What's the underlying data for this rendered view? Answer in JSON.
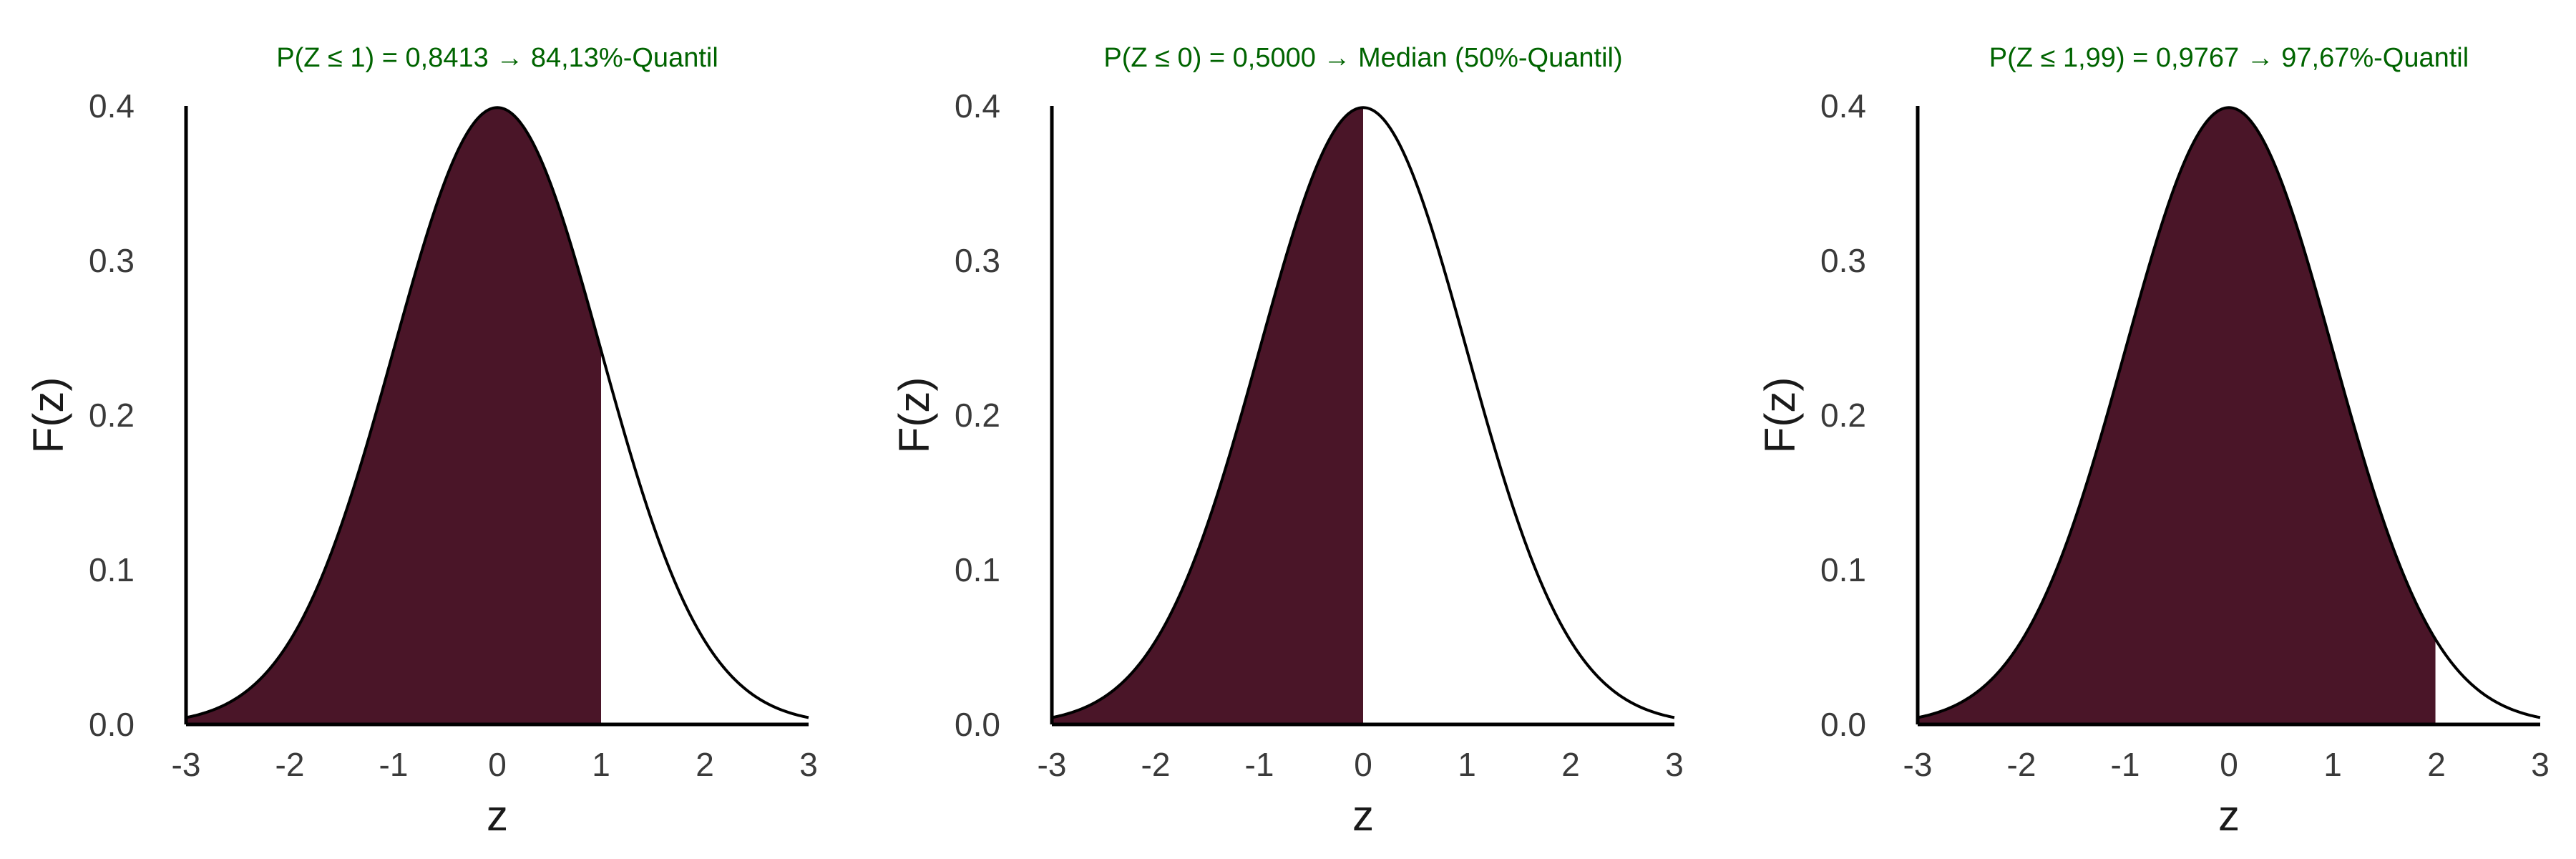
{
  "colors": {
    "fill": "#4a1528",
    "curve": "#000000",
    "axis": "#000000",
    "title": "#006400",
    "tick_text": "#3a3a3a",
    "background": "#ffffff"
  },
  "chart_data": [
    {
      "type": "area",
      "title": "P(Z ≤ 1) = 0,8413 → 84,13%-Quantil",
      "xlabel": "z",
      "ylabel": "F(z)",
      "xlim": [
        -3,
        3
      ],
      "ylim": [
        0,
        0.4
      ],
      "xticks": [
        -3,
        -2,
        -1,
        0,
        1,
        2,
        3
      ],
      "xtick_labels": [
        "-3",
        "-2",
        "-1",
        "0",
        "1",
        "2",
        "3"
      ],
      "yticks": [
        0.0,
        0.1,
        0.2,
        0.3,
        0.4
      ],
      "ytick_labels": [
        "0.0",
        "0.1",
        "0.2",
        "0.3",
        "0.4"
      ],
      "curve": "standard normal density",
      "shaded_upper_z": 1,
      "probability": 0.8413,
      "grid": false
    },
    {
      "type": "area",
      "title": "P(Z ≤ 0) = 0,5000 → Median (50%-Quantil)",
      "xlabel": "z",
      "ylabel": "F(z)",
      "xlim": [
        -3,
        3
      ],
      "ylim": [
        0,
        0.4
      ],
      "xticks": [
        -3,
        -2,
        -1,
        0,
        1,
        2,
        3
      ],
      "xtick_labels": [
        "-3",
        "-2",
        "-1",
        "0",
        "1",
        "2",
        "3"
      ],
      "yticks": [
        0.0,
        0.1,
        0.2,
        0.3,
        0.4
      ],
      "ytick_labels": [
        "0.0",
        "0.1",
        "0.2",
        "0.3",
        "0.4"
      ],
      "curve": "standard normal density",
      "shaded_upper_z": 0,
      "probability": 0.5,
      "grid": false
    },
    {
      "type": "area",
      "title": "P(Z ≤ 1,99) = 0,9767 → 97,67%-Quantil",
      "xlabel": "z",
      "ylabel": "F(z)",
      "xlim": [
        -3,
        3
      ],
      "ylim": [
        0,
        0.4
      ],
      "xticks": [
        -3,
        -2,
        -1,
        0,
        1,
        2,
        3
      ],
      "xtick_labels": [
        "-3",
        "-2",
        "-1",
        "0",
        "1",
        "2",
        "3"
      ],
      "yticks": [
        0.0,
        0.1,
        0.2,
        0.3,
        0.4
      ],
      "ytick_labels": [
        "0.0",
        "0.1",
        "0.2",
        "0.3",
        "0.4"
      ],
      "curve": "standard normal density",
      "shaded_upper_z": 1.99,
      "probability": 0.9767,
      "grid": false
    }
  ]
}
